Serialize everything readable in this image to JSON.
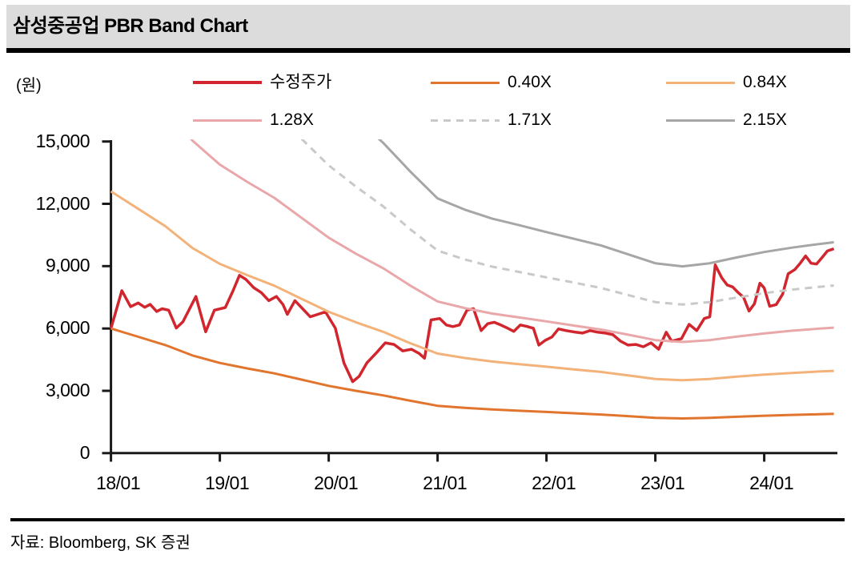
{
  "title": "삼성중공업 PBR Band Chart",
  "y_unit_label": "(원)",
  "source": "자료: Bloomberg, SK 증권",
  "colors": {
    "title_bar_bg": "#dcdcdc",
    "rule_black": "#000000",
    "axis": "#1a1a1a",
    "price_red": "#d2262e",
    "band_040_orange": "#e2752e",
    "band_084_light_orange": "#f3b27a",
    "band_128_pink": "#e9a7a9",
    "band_171_light_gray": "#c9c9c9",
    "band_215_gray": "#a6a6a6"
  },
  "legend": [
    {
      "id": "price",
      "label": "수정주가",
      "color": "#d2262e",
      "dash": null,
      "thick": true
    },
    {
      "id": "band_040",
      "label": "0.40X",
      "color": "#e2752e",
      "dash": null,
      "thick": false
    },
    {
      "id": "band_084",
      "label": "0.84X",
      "color": "#f3b27a",
      "dash": null,
      "thick": false
    },
    {
      "id": "band_128",
      "label": "1.28X",
      "color": "#e9a7a9",
      "dash": null,
      "thick": false
    },
    {
      "id": "band_171",
      "label": "1.71X",
      "color": "#c9c9c9",
      "dash": "9 7",
      "thick": false
    },
    {
      "id": "band_215",
      "label": "2.15X",
      "color": "#a6a6a6",
      "dash": null,
      "thick": false
    }
  ],
  "chart_data": {
    "type": "line",
    "title": "삼성중공업 PBR Band Chart",
    "xlabel": "",
    "ylabel": "(원)",
    "xlim": [
      2018.0,
      2024.7
    ],
    "ylim": [
      0,
      15000
    ],
    "grid": false,
    "legend_position": "top",
    "x_ticks": [
      {
        "t": 2018,
        "label": "18/01"
      },
      {
        "t": 2019,
        "label": "19/01"
      },
      {
        "t": 2020,
        "label": "20/01"
      },
      {
        "t": 2021,
        "label": "21/01"
      },
      {
        "t": 2022,
        "label": "22/01"
      },
      {
        "t": 2023,
        "label": "23/01"
      },
      {
        "t": 2024,
        "label": "24/01"
      }
    ],
    "y_ticks": [
      {
        "value": 0,
        "label": "0"
      },
      {
        "value": 3000,
        "label": "3,000"
      },
      {
        "value": 6000,
        "label": "6,000"
      },
      {
        "value": 9000,
        "label": "9,000"
      },
      {
        "value": 12000,
        "label": "12,000"
      },
      {
        "value": 15000,
        "label": "15,000"
      }
    ],
    "series": [
      {
        "id": "price",
        "name": "수정주가",
        "color": "#d2262e",
        "width": 3.5,
        "dash": null,
        "points": [
          [
            2018.0,
            6000
          ],
          [
            2018.1,
            7820
          ],
          [
            2018.18,
            7050
          ],
          [
            2018.25,
            7230
          ],
          [
            2018.31,
            7020
          ],
          [
            2018.36,
            7160
          ],
          [
            2018.42,
            6820
          ],
          [
            2018.47,
            6950
          ],
          [
            2018.53,
            6880
          ],
          [
            2018.6,
            6020
          ],
          [
            2018.66,
            6320
          ],
          [
            2018.78,
            7540
          ],
          [
            2018.87,
            5840
          ],
          [
            2018.95,
            6880
          ],
          [
            2019.05,
            7010
          ],
          [
            2019.12,
            7800
          ],
          [
            2019.18,
            8560
          ],
          [
            2019.24,
            8360
          ],
          [
            2019.31,
            7970
          ],
          [
            2019.38,
            7730
          ],
          [
            2019.45,
            7340
          ],
          [
            2019.52,
            7540
          ],
          [
            2019.58,
            7150
          ],
          [
            2019.62,
            6680
          ],
          [
            2019.69,
            7340
          ],
          [
            2019.76,
            6950
          ],
          [
            2019.83,
            6560
          ],
          [
            2019.9,
            6680
          ],
          [
            2019.97,
            6800
          ],
          [
            2020.06,
            6020
          ],
          [
            2020.14,
            4340
          ],
          [
            2020.22,
            3440
          ],
          [
            2020.28,
            3700
          ],
          [
            2020.35,
            4340
          ],
          [
            2020.44,
            4840
          ],
          [
            2020.52,
            5310
          ],
          [
            2020.6,
            5230
          ],
          [
            2020.68,
            4920
          ],
          [
            2020.76,
            5000
          ],
          [
            2020.83,
            4800
          ],
          [
            2020.88,
            4570
          ],
          [
            2020.94,
            6410
          ],
          [
            2021.02,
            6480
          ],
          [
            2021.08,
            6170
          ],
          [
            2021.14,
            6090
          ],
          [
            2021.2,
            6170
          ],
          [
            2021.27,
            6880
          ],
          [
            2021.33,
            6950
          ],
          [
            2021.4,
            5900
          ],
          [
            2021.46,
            6230
          ],
          [
            2021.52,
            6300
          ],
          [
            2021.58,
            6170
          ],
          [
            2021.64,
            6020
          ],
          [
            2021.7,
            5860
          ],
          [
            2021.76,
            6170
          ],
          [
            2021.82,
            6100
          ],
          [
            2021.88,
            6010
          ],
          [
            2021.93,
            5200
          ],
          [
            2021.99,
            5430
          ],
          [
            2022.05,
            5590
          ],
          [
            2022.11,
            5980
          ],
          [
            2022.18,
            5900
          ],
          [
            2022.26,
            5830
          ],
          [
            2022.33,
            5780
          ],
          [
            2022.4,
            5900
          ],
          [
            2022.47,
            5820
          ],
          [
            2022.54,
            5780
          ],
          [
            2022.61,
            5700
          ],
          [
            2022.68,
            5390
          ],
          [
            2022.75,
            5200
          ],
          [
            2022.82,
            5230
          ],
          [
            2022.89,
            5120
          ],
          [
            2022.96,
            5310
          ],
          [
            2023.03,
            5000
          ],
          [
            2023.1,
            5820
          ],
          [
            2023.15,
            5390
          ],
          [
            2023.24,
            5510
          ],
          [
            2023.31,
            6200
          ],
          [
            2023.38,
            5900
          ],
          [
            2023.45,
            6480
          ],
          [
            2023.5,
            6560
          ],
          [
            2023.55,
            9060
          ],
          [
            2023.61,
            8440
          ],
          [
            2023.66,
            8090
          ],
          [
            2023.71,
            8000
          ],
          [
            2023.76,
            7730
          ],
          [
            2023.81,
            7500
          ],
          [
            2023.86,
            6840
          ],
          [
            2023.91,
            7190
          ],
          [
            2023.96,
            8180
          ],
          [
            2024.0,
            7950
          ],
          [
            2024.05,
            7070
          ],
          [
            2024.11,
            7150
          ],
          [
            2024.17,
            7660
          ],
          [
            2024.22,
            8630
          ],
          [
            2024.28,
            8830
          ],
          [
            2024.33,
            9140
          ],
          [
            2024.38,
            9490
          ],
          [
            2024.43,
            9140
          ],
          [
            2024.48,
            9100
          ],
          [
            2024.53,
            9410
          ],
          [
            2024.58,
            9730
          ],
          [
            2024.64,
            9840
          ]
        ]
      },
      {
        "id": "band_040",
        "name": "0.40X",
        "color": "#e2752e",
        "width": 3,
        "dash": null,
        "points": [
          [
            2018.0,
            6000
          ],
          [
            2018.25,
            5600
          ],
          [
            2018.5,
            5200
          ],
          [
            2018.75,
            4700
          ],
          [
            2019.0,
            4340
          ],
          [
            2019.25,
            4080
          ],
          [
            2019.5,
            3840
          ],
          [
            2019.75,
            3540
          ],
          [
            2020.0,
            3240
          ],
          [
            2020.25,
            3000
          ],
          [
            2020.5,
            2780
          ],
          [
            2020.75,
            2520
          ],
          [
            2021.0,
            2280
          ],
          [
            2021.25,
            2180
          ],
          [
            2021.5,
            2100
          ],
          [
            2021.75,
            2040
          ],
          [
            2022.0,
            1980
          ],
          [
            2022.25,
            1920
          ],
          [
            2022.5,
            1860
          ],
          [
            2022.75,
            1780
          ],
          [
            2023.0,
            1700
          ],
          [
            2023.25,
            1670
          ],
          [
            2023.5,
            1700
          ],
          [
            2023.75,
            1750
          ],
          [
            2024.0,
            1800
          ],
          [
            2024.25,
            1840
          ],
          [
            2024.5,
            1870
          ],
          [
            2024.64,
            1890
          ]
        ]
      },
      {
        "id": "band_084",
        "name": "0.84X",
        "color": "#f3b27a",
        "width": 3,
        "dash": null,
        "points": [
          [
            2018.0,
            12600
          ],
          [
            2018.25,
            11760
          ],
          [
            2018.5,
            10920
          ],
          [
            2018.75,
            9870
          ],
          [
            2019.0,
            9110
          ],
          [
            2019.25,
            8570
          ],
          [
            2019.5,
            8060
          ],
          [
            2019.75,
            7430
          ],
          [
            2020.0,
            6800
          ],
          [
            2020.25,
            6300
          ],
          [
            2020.5,
            5840
          ],
          [
            2020.75,
            5290
          ],
          [
            2021.0,
            4790
          ],
          [
            2021.25,
            4580
          ],
          [
            2021.5,
            4410
          ],
          [
            2021.75,
            4280
          ],
          [
            2022.0,
            4160
          ],
          [
            2022.25,
            4030
          ],
          [
            2022.5,
            3910
          ],
          [
            2022.75,
            3740
          ],
          [
            2023.0,
            3570
          ],
          [
            2023.25,
            3510
          ],
          [
            2023.5,
            3570
          ],
          [
            2023.75,
            3680
          ],
          [
            2024.0,
            3780
          ],
          [
            2024.25,
            3860
          ],
          [
            2024.5,
            3930
          ],
          [
            2024.64,
            3960
          ]
        ]
      },
      {
        "id": "band_128",
        "name": "1.28X",
        "color": "#e9a7a9",
        "width": 3,
        "dash": null,
        "points": [
          [
            2018.5,
            16640
          ],
          [
            2018.75,
            15040
          ],
          [
            2019.0,
            13890
          ],
          [
            2019.25,
            13060
          ],
          [
            2019.5,
            12290
          ],
          [
            2019.75,
            11330
          ],
          [
            2020.0,
            10370
          ],
          [
            2020.25,
            9600
          ],
          [
            2020.5,
            8900
          ],
          [
            2020.75,
            8060
          ],
          [
            2021.0,
            7300
          ],
          [
            2021.25,
            6980
          ],
          [
            2021.5,
            6720
          ],
          [
            2021.75,
            6530
          ],
          [
            2022.0,
            6340
          ],
          [
            2022.25,
            6140
          ],
          [
            2022.5,
            5950
          ],
          [
            2022.75,
            5700
          ],
          [
            2023.0,
            5440
          ],
          [
            2023.25,
            5350
          ],
          [
            2023.5,
            5440
          ],
          [
            2023.75,
            5610
          ],
          [
            2024.0,
            5760
          ],
          [
            2024.25,
            5890
          ],
          [
            2024.5,
            5990
          ],
          [
            2024.64,
            6040
          ]
        ]
      },
      {
        "id": "band_171",
        "name": "1.71X",
        "color": "#c9c9c9",
        "width": 3,
        "dash": "9 7",
        "points": [
          [
            2019.5,
            16420
          ],
          [
            2019.75,
            15130
          ],
          [
            2020.0,
            13850
          ],
          [
            2020.25,
            12830
          ],
          [
            2020.5,
            11880
          ],
          [
            2020.75,
            10770
          ],
          [
            2021.0,
            9750
          ],
          [
            2021.25,
            9320
          ],
          [
            2021.5,
            8980
          ],
          [
            2021.75,
            8720
          ],
          [
            2022.0,
            8460
          ],
          [
            2022.25,
            8210
          ],
          [
            2022.5,
            7950
          ],
          [
            2022.75,
            7610
          ],
          [
            2023.0,
            7270
          ],
          [
            2023.25,
            7150
          ],
          [
            2023.5,
            7270
          ],
          [
            2023.75,
            7490
          ],
          [
            2024.0,
            7700
          ],
          [
            2024.25,
            7870
          ],
          [
            2024.5,
            8000
          ],
          [
            2024.64,
            8070
          ]
        ]
      },
      {
        "id": "band_215",
        "name": "2.15X",
        "color": "#a6a6a6",
        "width": 3,
        "dash": null,
        "points": [
          [
            2020.25,
            16130
          ],
          [
            2020.5,
            14940
          ],
          [
            2020.75,
            13550
          ],
          [
            2021.0,
            12260
          ],
          [
            2021.25,
            11720
          ],
          [
            2021.5,
            11290
          ],
          [
            2021.75,
            10970
          ],
          [
            2022.0,
            10640
          ],
          [
            2022.25,
            10320
          ],
          [
            2022.5,
            10000
          ],
          [
            2022.75,
            9570
          ],
          [
            2023.0,
            9140
          ],
          [
            2023.25,
            8990
          ],
          [
            2023.5,
            9140
          ],
          [
            2023.75,
            9420
          ],
          [
            2024.0,
            9680
          ],
          [
            2024.25,
            9890
          ],
          [
            2024.5,
            10060
          ],
          [
            2024.64,
            10150
          ]
        ]
      }
    ]
  }
}
